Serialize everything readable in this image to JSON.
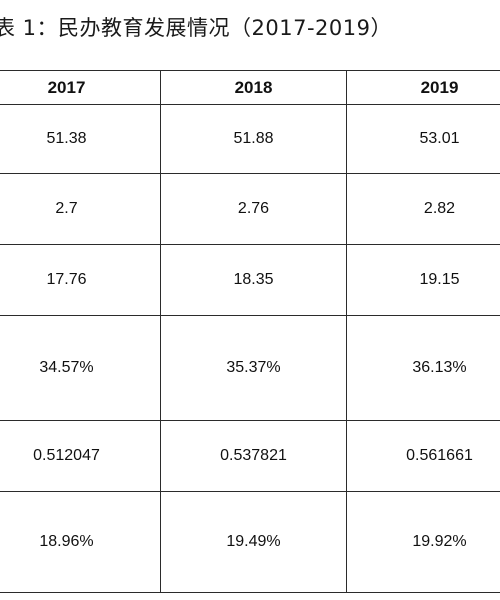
{
  "caption": "表 1：民办教育发展情况（2017-2019）",
  "table": {
    "headers": [
      "2017",
      "2018",
      "2019"
    ],
    "rows": [
      [
        "51.38",
        "51.88",
        "53.01"
      ],
      [
        "2.7",
        "2.76",
        "2.82"
      ],
      [
        "17.76",
        "18.35",
        "19.15"
      ],
      [
        "34.57%",
        "35.37%",
        "36.13%"
      ],
      [
        "0.512047",
        "0.537821",
        "0.561661"
      ],
      [
        "18.96%",
        "19.49%",
        "19.92%"
      ]
    ]
  }
}
